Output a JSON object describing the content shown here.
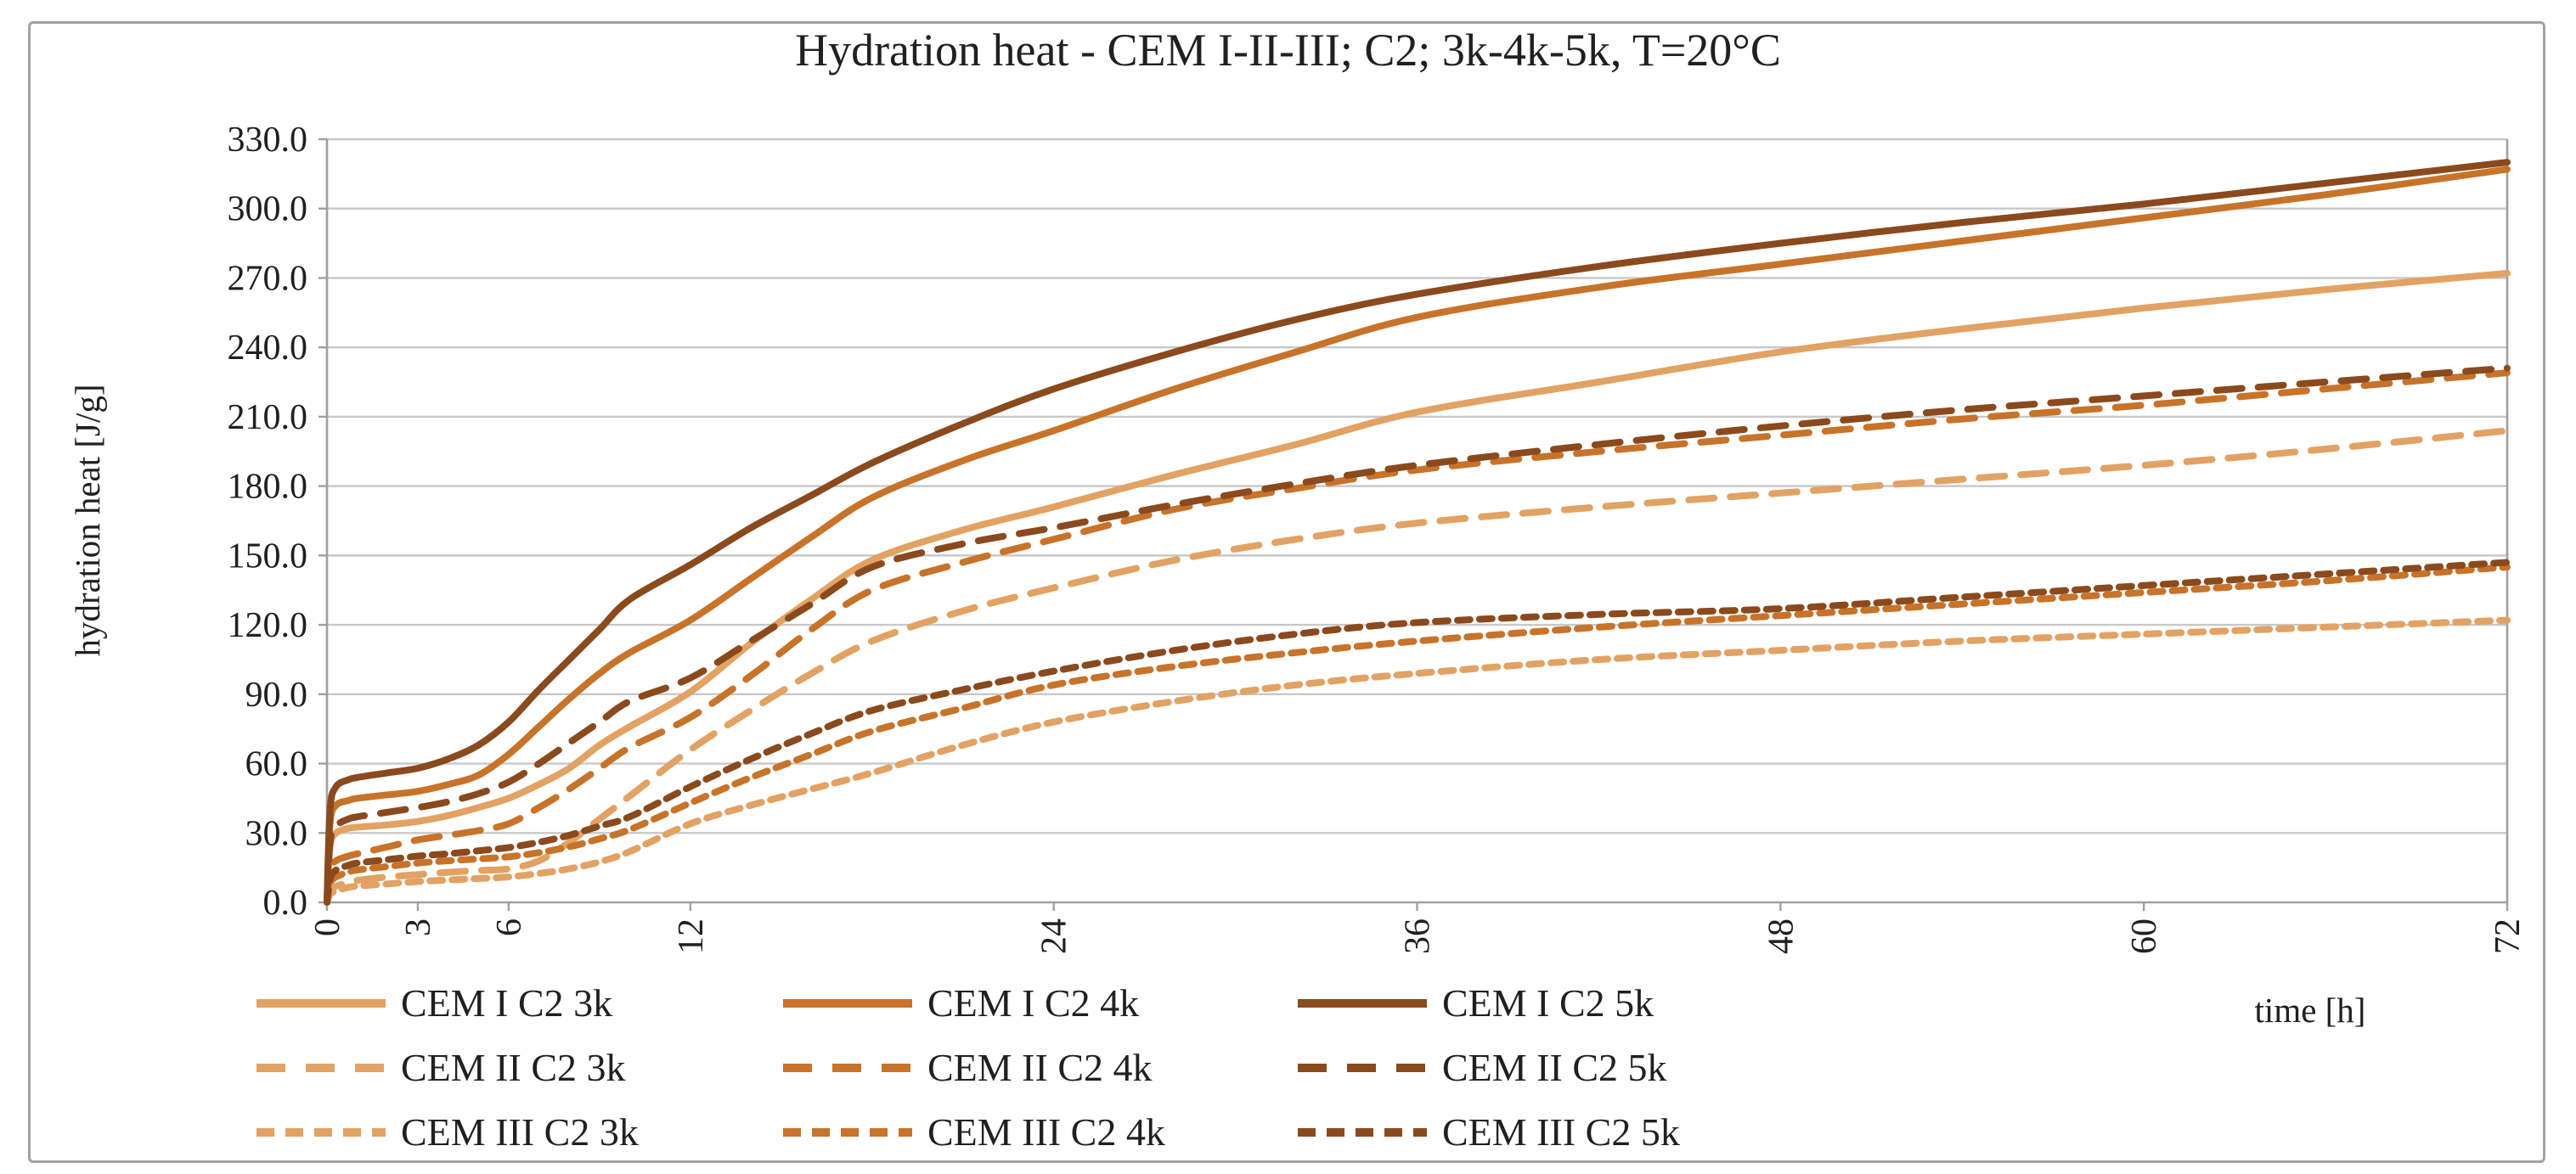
{
  "chart_data": {
    "type": "line",
    "title": "Hydration heat - CEM I-II-III; C2; 3k-4k-5k, T=20°C",
    "xlabel": "time [h]",
    "ylabel": "hydration heat [J/g]",
    "xlim": [
      0,
      72
    ],
    "ylim": [
      0,
      330
    ],
    "x_ticks": [
      0,
      3,
      6,
      12,
      24,
      36,
      48,
      60,
      72
    ],
    "y_ticks": [
      "0.0",
      "30.0",
      "60.0",
      "90.0",
      "120.0",
      "150.0",
      "180.0",
      "210.0",
      "240.0",
      "270.0",
      "300.0",
      "330.0"
    ],
    "grid": "horizontal",
    "legend_position": "bottom-left, 3 columns x 3 rows",
    "colors": {
      "fineness_3k": "#E2A263",
      "fineness_4k": "#C8732A",
      "fineness_5k": "#8A4A1D",
      "grid": "#C8C8C8",
      "axis": "#A0A0A0",
      "text": "#202020"
    },
    "x": [
      0,
      0.1,
      0.3,
      0.7,
      1,
      2,
      3,
      4,
      5,
      6,
      7,
      8,
      9,
      10,
      12,
      14,
      16,
      18,
      21,
      24,
      28,
      32,
      36,
      42,
      48,
      54,
      60,
      66,
      72
    ],
    "series": [
      {
        "name": "CEM I C2 3k",
        "color": "#E2A263",
        "line_style": "solid",
        "values": [
          0,
          24,
          30,
          32,
          32.5,
          33.5,
          35,
          37.5,
          41,
          45,
          51,
          58,
          68,
          76,
          91,
          112,
          131,
          148,
          161,
          171,
          185,
          198,
          212,
          225,
          238,
          248,
          257,
          265,
          272
        ]
      },
      {
        "name": "CEM I C2 4k",
        "color": "#C8732A",
        "line_style": "solid",
        "values": [
          0,
          34,
          42,
          44,
          45,
          46.5,
          48,
          51,
          55,
          64,
          76,
          88,
          99,
          108,
          122,
          140,
          158,
          175,
          191,
          204,
          222,
          238,
          253,
          266,
          276,
          286,
          296,
          306,
          317
        ]
      },
      {
        "name": "CEM I C2 5k",
        "color": "#8A4A1D",
        "line_style": "solid",
        "values": [
          0,
          40,
          50,
          53,
          54,
          56,
          58,
          62,
          68,
          78,
          92,
          105,
          118,
          131,
          146,
          162,
          176,
          190,
          207,
          222,
          238,
          252,
          263,
          275,
          285,
          294,
          302,
          311,
          320
        ]
      },
      {
        "name": "CEM II C2 3k",
        "color": "#E2A263",
        "line_style": "dash",
        "values": [
          0,
          5,
          7,
          8.5,
          9.5,
          11,
          12,
          13,
          13.8,
          14.5,
          18,
          26,
          36,
          46,
          66,
          83,
          99,
          113,
          126,
          136,
          148,
          157,
          164,
          171,
          177,
          183,
          189,
          196,
          204
        ]
      },
      {
        "name": "CEM II C2 4k",
        "color": "#C8732A",
        "line_style": "dash",
        "values": [
          0,
          14,
          18,
          20,
          21,
          24,
          27,
          29,
          31,
          34,
          41,
          49,
          58,
          67,
          80,
          98,
          118,
          135,
          147,
          157,
          170,
          179,
          187,
          195,
          202,
          209,
          215,
          222,
          229
        ]
      },
      {
        "name": "CEM II C2 5k",
        "color": "#8A4A1D",
        "line_style": "dash",
        "values": [
          0,
          26,
          33,
          36,
          37,
          39,
          41,
          43.5,
          47,
          52,
          60,
          69,
          78,
          87,
          97,
          113,
          129,
          145,
          155,
          162,
          172,
          181,
          189,
          198,
          206,
          213,
          219,
          225,
          231
        ]
      },
      {
        "name": "CEM III C2 3k",
        "color": "#E2A263",
        "line_style": "dot",
        "values": [
          0,
          3.5,
          5,
          6.5,
          7,
          8,
          9,
          9.7,
          10.3,
          11,
          12.5,
          14.5,
          17.5,
          22,
          34,
          42,
          49,
          56,
          68,
          78,
          87,
          94,
          99,
          105,
          109,
          113,
          116,
          119,
          122
        ]
      },
      {
        "name": "CEM III C2 4k",
        "color": "#C8732A",
        "line_style": "dot",
        "values": [
          0,
          8,
          11,
          13,
          14,
          15.5,
          17,
          18,
          18.8,
          19.7,
          21.5,
          24,
          27.5,
          31.5,
          43,
          54,
          64,
          74,
          84,
          94,
          102,
          108,
          113,
          119,
          124,
          129,
          134,
          139,
          145
        ]
      },
      {
        "name": "CEM III C2 5k",
        "color": "#8A4A1D",
        "line_style": "dot",
        "values": [
          0,
          10,
          14,
          16,
          17,
          18.5,
          20,
          21,
          22.3,
          23.7,
          26,
          29,
          33,
          37,
          50,
          62,
          73,
          83,
          92,
          100,
          109,
          116,
          121,
          124.5,
          127,
          132,
          137,
          142,
          147
        ]
      }
    ]
  }
}
